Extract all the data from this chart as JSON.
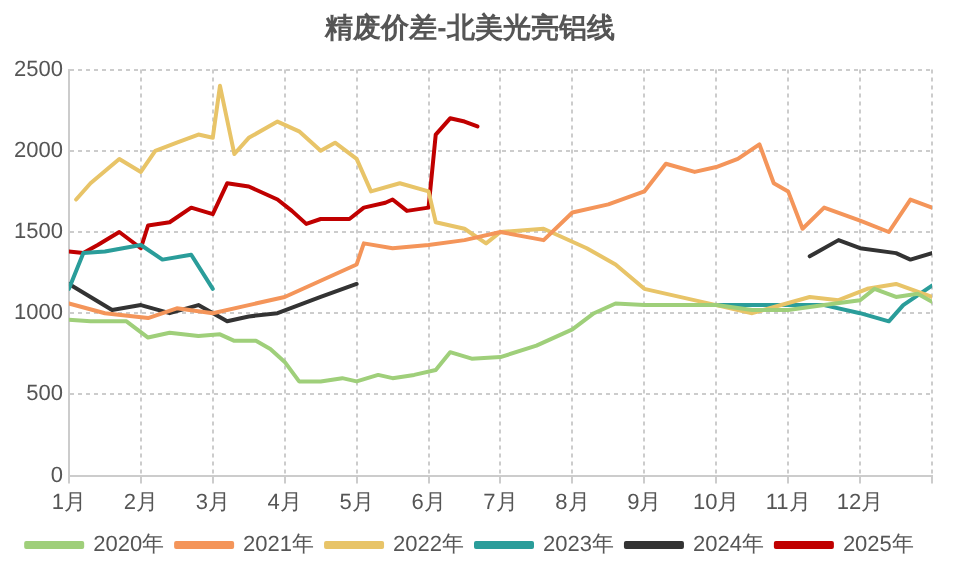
{
  "chart_data": {
    "type": "line",
    "title": "精废价差-北美光亮铝线",
    "xlim": [
      1,
      13
    ],
    "xticks": [
      {
        "value": 1,
        "label": "1月"
      },
      {
        "value": 2,
        "label": "2月"
      },
      {
        "value": 3,
        "label": "3月"
      },
      {
        "value": 4,
        "label": "4月"
      },
      {
        "value": 5,
        "label": "5月"
      },
      {
        "value": 6,
        "label": "6月"
      },
      {
        "value": 7,
        "label": "7月"
      },
      {
        "value": 8,
        "label": "8月"
      },
      {
        "value": 9,
        "label": "9月"
      },
      {
        "value": 10,
        "label": "10月"
      },
      {
        "value": 11,
        "label": "11月"
      },
      {
        "value": 12,
        "label": "12月"
      },
      {
        "value": 13,
        "label": null
      }
    ],
    "ylim": [
      0,
      2500
    ],
    "yticks": [
      0,
      500,
      1000,
      1500,
      2000,
      2500
    ],
    "grid": true,
    "legend": "bottom",
    "series": [
      {
        "name": "2020年",
        "color": "#9fcf7a",
        "x": [
          1,
          1.3,
          1.8,
          2.1,
          2.4,
          2.8,
          3.1,
          3.3,
          3.6,
          3.8,
          4.0,
          4.2,
          4.5,
          4.8,
          5.0,
          5.3,
          5.5,
          5.8,
          6.1,
          6.3,
          6.6,
          7.0,
          7.5,
          8.0,
          8.3,
          8.6,
          9.0,
          10.0,
          10.5,
          11.0,
          11.5,
          12.0,
          12.2,
          12.5,
          12.8,
          13
        ],
        "values": [
          960,
          950,
          950,
          850,
          880,
          860,
          870,
          830,
          830,
          780,
          700,
          580,
          580,
          600,
          580,
          620,
          600,
          620,
          650,
          760,
          720,
          730,
          800,
          900,
          1000,
          1060,
          1050,
          1050,
          1020,
          1020,
          1050,
          1080,
          1150,
          1100,
          1120,
          1070
        ]
      },
      {
        "name": "2021年",
        "color": "#f4955a",
        "x": [
          1,
          1.5,
          2.1,
          2.5,
          3.0,
          3.5,
          4.0,
          4.5,
          5.0,
          5.1,
          5.5,
          6.0,
          6.5,
          7.0,
          7.6,
          8.0,
          8.5,
          9.0,
          9.3,
          9.7,
          10.0,
          10.3,
          10.6,
          10.8,
          11.0,
          11.2,
          11.5,
          12.0,
          12.4,
          12.7,
          13
        ],
        "values": [
          1060,
          1000,
          970,
          1030,
          1000,
          1050,
          1100,
          1200,
          1300,
          1430,
          1400,
          1420,
          1450,
          1500,
          1450,
          1620,
          1670,
          1750,
          1920,
          1870,
          1900,
          1950,
          2040,
          1800,
          1750,
          1520,
          1650,
          1570,
          1500,
          1700,
          1650
        ]
      },
      {
        "name": "2022年",
        "color": "#e8c468",
        "x": [
          1.1,
          1.3,
          1.7,
          2.0,
          2.2,
          2.5,
          2.8,
          3.0,
          3.1,
          3.3,
          3.5,
          3.9,
          4.2,
          4.5,
          4.7,
          5.0,
          5.2,
          5.6,
          6.0,
          6.1,
          6.5,
          6.8,
          7.0,
          7.6,
          8.2,
          8.6,
          9.0,
          10.0,
          10.5,
          11.3,
          11.7,
          12.1,
          12.5,
          13
        ],
        "values": [
          1700,
          1800,
          1950,
          1870,
          2000,
          2050,
          2100,
          2080,
          2400,
          1980,
          2080,
          2180,
          2120,
          2000,
          2050,
          1950,
          1750,
          1800,
          1750,
          1560,
          1520,
          1430,
          1500,
          1520,
          1400,
          1300,
          1150,
          1050,
          1000,
          1100,
          1080,
          1150,
          1180,
          1100
        ]
      },
      {
        "name": "2023年",
        "color": "#2a9d9a",
        "x": [
          1,
          1.2,
          1.5,
          2.0,
          2.3,
          2.7,
          3.0,
          9.5,
          10.0,
          10.5,
          11.0,
          11.5,
          12.0,
          12.4,
          12.6,
          13
        ],
        "values": [
          1150,
          1370,
          1380,
          1420,
          1330,
          1360,
          1150,
          null,
          1050,
          1050,
          1050,
          1050,
          1000,
          950,
          1050,
          1170
        ]
      },
      {
        "name": "2024年",
        "color": "#333333",
        "x": [
          1,
          1.3,
          1.6,
          2.0,
          2.4,
          2.8,
          3.2,
          3.5,
          3.9,
          4.5,
          5.0,
          10.9,
          11.3,
          11.7,
          12.0,
          12.5,
          12.7,
          13
        ],
        "values": [
          1180,
          1100,
          1020,
          1050,
          1000,
          1050,
          950,
          980,
          1000,
          1100,
          1180,
          null,
          1350,
          1450,
          1400,
          1370,
          1330,
          1370
        ]
      },
      {
        "name": "2025年",
        "color": "#c00000",
        "x": [
          1,
          1.2,
          1.4,
          1.7,
          2.0,
          2.1,
          2.4,
          2.7,
          3.0,
          3.2,
          3.5,
          3.9,
          4.1,
          4.3,
          4.5,
          4.9,
          5.1,
          5.4,
          5.5,
          5.7,
          6.0,
          6.1,
          6.3,
          6.5,
          6.68
        ],
        "values": [
          1380,
          1370,
          1420,
          1500,
          1400,
          1540,
          1560,
          1650,
          1610,
          1800,
          1780,
          1700,
          1630,
          1550,
          1580,
          1580,
          1650,
          1680,
          1700,
          1630,
          1650,
          2100,
          2200,
          2180,
          2150
        ]
      }
    ]
  }
}
